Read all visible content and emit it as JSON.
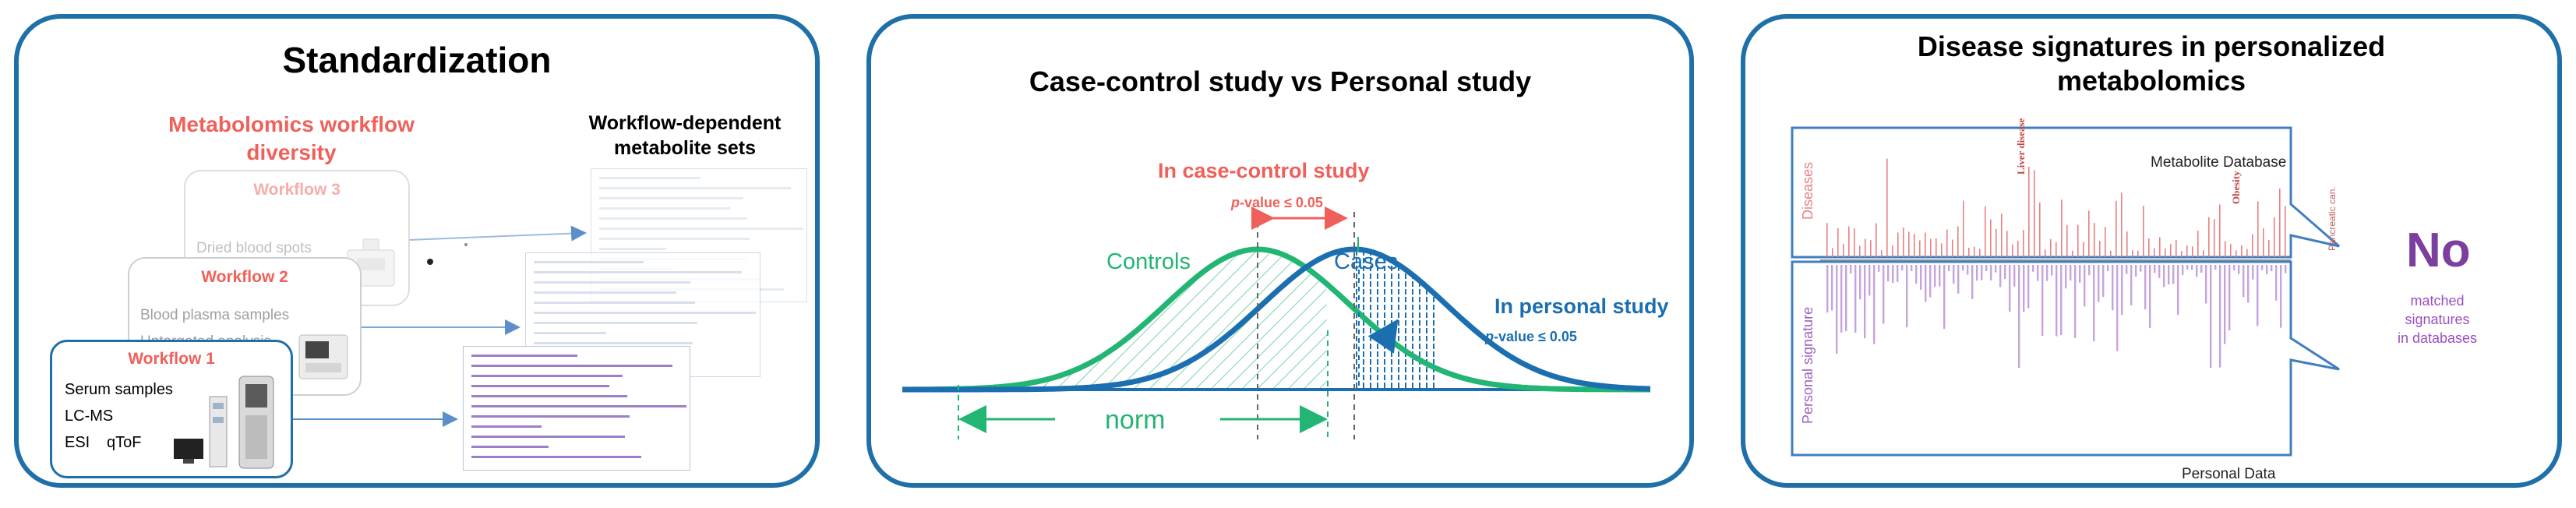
{
  "panel1": {
    "title": "Standardization",
    "diversity_title_line1": "Metabolomics workflow",
    "diversity_title_line2": "diversity",
    "sets_title_line1": "Workflow-dependent",
    "sets_title_line2": "metabolite sets",
    "workflow3": {
      "title": "Workflow 3",
      "items": [
        "Dried blood spots"
      ]
    },
    "workflow2": {
      "title": "Workflow 2",
      "items": [
        "Blood plasma samples",
        "Untargeted analysis"
      ]
    },
    "workflow1": {
      "title": "Workflow 1",
      "items": [
        "Serum samples",
        "LC-MS",
        "ESI",
        "qToF"
      ]
    }
  },
  "panel2": {
    "title": "Case-control study vs Personal study",
    "case_control_label": "In case-control study",
    "pvalue_prefix": "p",
    "pvalue_suffix": "-value ≤ 0.05",
    "controls_label": "Controls",
    "cases_label": "Cases",
    "personal_label": "In personal study",
    "norm_label": "norm"
  },
  "panel3": {
    "title_line1": "Disease signatures in personalized",
    "title_line2": "metabolomics",
    "database_label": "Metabolite Database",
    "diseases_label": "Diseases",
    "personal_signature_label": "Personal signature",
    "personal_data_label": "Personal Data",
    "no_label": "No",
    "matched_line1": "matched",
    "matched_line2": "signatures",
    "matched_line3": "in databases",
    "disease_names": [
      "Liver disease",
      "Obesity",
      "Pancreatic can."
    ]
  },
  "colors": {
    "frame": "#1f6fa8",
    "red": "#f0605a",
    "green": "#22b573",
    "blue": "#1b6fb0",
    "purple": "#7b3f9e",
    "disease_red": "#e88080",
    "signature_purple": "#b58ad0"
  }
}
